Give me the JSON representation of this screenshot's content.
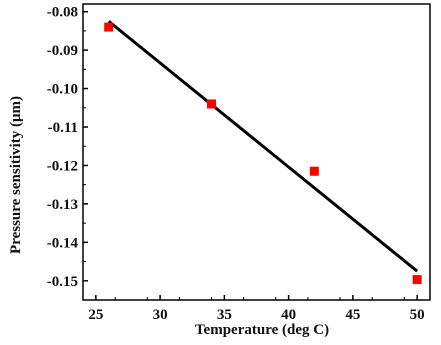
{
  "chart_data": {
    "type": "scatter",
    "xlabel": "Temperature (deg C)",
    "ylabel": "Pressure sensitivity (μm)",
    "xlim": [
      24,
      51
    ],
    "ylim": [
      -0.155,
      -0.078
    ],
    "x_ticks": [
      25,
      30,
      35,
      40,
      45,
      50
    ],
    "y_ticks": [
      -0.08,
      -0.09,
      -0.1,
      -0.11,
      -0.12,
      -0.13,
      -0.14,
      -0.15
    ],
    "x_tick_labels": [
      "25",
      "30",
      "35",
      "40",
      "45",
      "50"
    ],
    "y_tick_labels": [
      "-0.08",
      "-0.09",
      "-0.10",
      "-0.11",
      "-0.12",
      "-0.13",
      "-0.14",
      "-0.15"
    ],
    "grid": false,
    "legend": "none",
    "series": [
      {
        "kind": "scatter",
        "marker": "square",
        "color": "#ff0000",
        "x": [
          26,
          34,
          42,
          50
        ],
        "y": [
          -0.084,
          -0.104,
          -0.1215,
          -0.1497
        ]
      },
      {
        "kind": "line",
        "color": "#000000",
        "x": [
          26,
          50
        ],
        "y": [
          -0.0825,
          -0.1475
        ]
      }
    ]
  }
}
